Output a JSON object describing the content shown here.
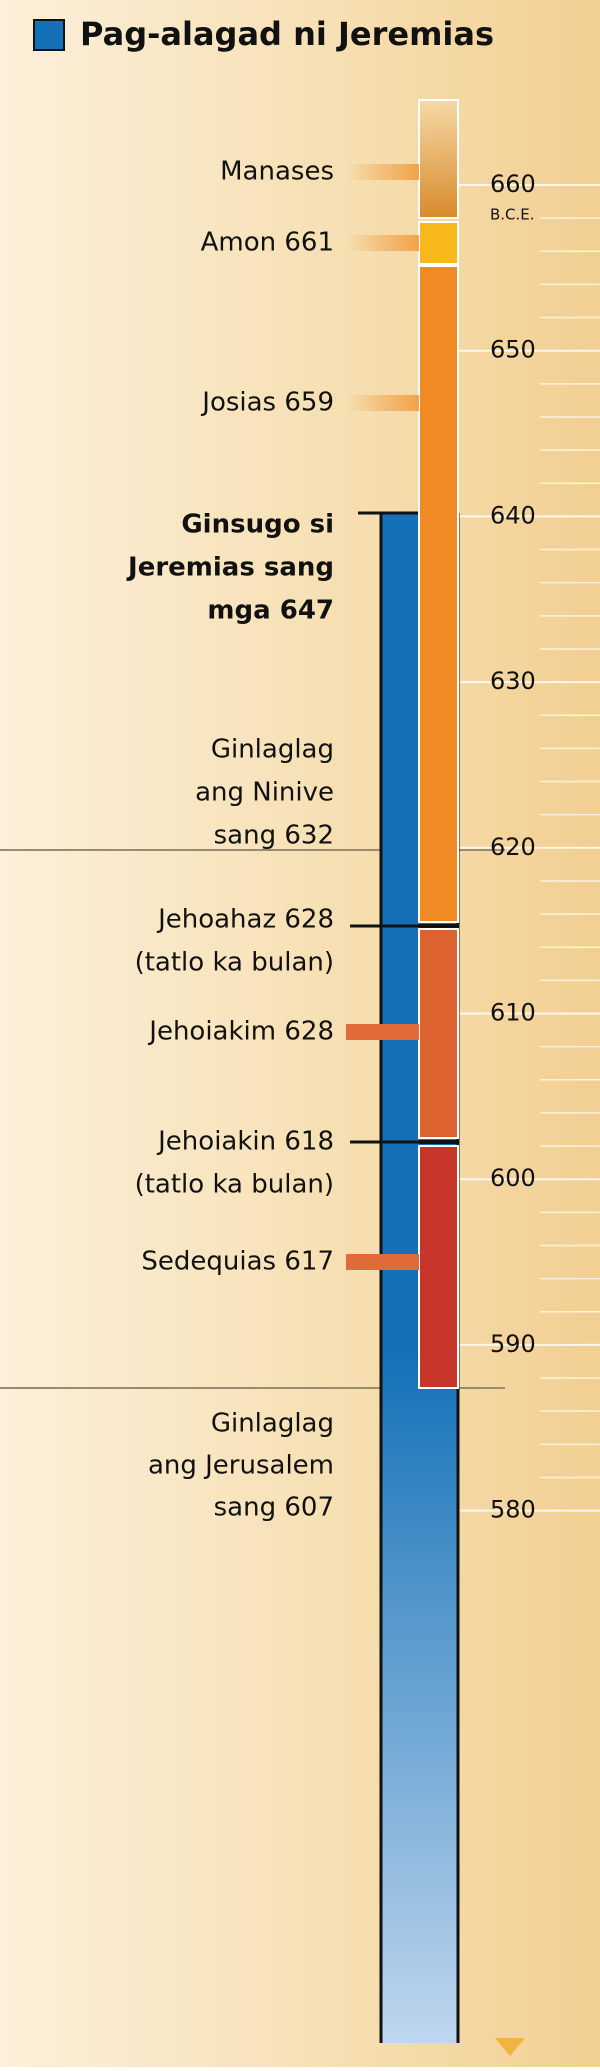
{
  "legend": {
    "label": "Pag-alagad ni Jeremias"
  },
  "axis": {
    "ticks": [
      660,
      650,
      640,
      630,
      620,
      610,
      600,
      590,
      580
    ],
    "unit": "B.C.E."
  },
  "events": [
    {
      "lines": [
        "Manases"
      ]
    },
    {
      "lines": [
        "Amon 661"
      ]
    },
    {
      "lines": [
        "Josias 659"
      ]
    },
    {
      "lines": [
        "Ginsugo si",
        "Jeremias sang",
        "mga 647"
      ]
    },
    {
      "lines": [
        "Ginlaglag",
        "ang Ninive",
        "sang 632"
      ]
    },
    {
      "lines": [
        "Jehoahaz 628",
        "(tatlo ka bulan)"
      ]
    },
    {
      "lines": [
        "Jehoiakim 628"
      ]
    },
    {
      "lines": [
        "Jehoiakin 618",
        "(tatlo ka bulan)"
      ]
    },
    {
      "lines": [
        "Sedequias 617"
      ]
    },
    {
      "lines": [
        "Ginlaglag",
        "ang Jerusalem",
        "sang 607"
      ]
    }
  ]
}
